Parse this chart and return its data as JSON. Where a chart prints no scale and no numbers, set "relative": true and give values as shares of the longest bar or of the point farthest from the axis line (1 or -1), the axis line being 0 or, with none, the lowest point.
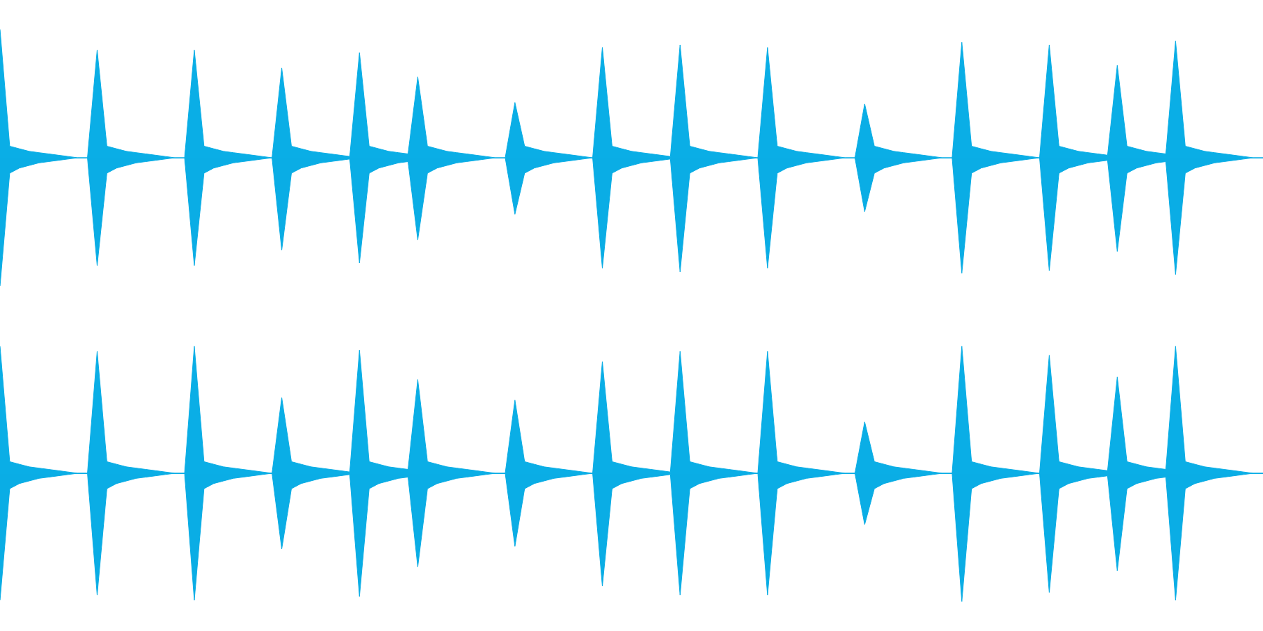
{
  "chart_data": [
    {
      "type": "area",
      "relative": true,
      "ref_lines": [
        {
          "axis": "y",
          "value": 0,
          "color": "#0aaee6"
        }
      ],
      "categories": [
        null,
        null,
        null,
        null,
        null,
        null,
        null,
        null,
        null,
        null,
        null,
        null,
        null,
        null,
        null,
        null,
        null,
        null,
        null,
        null,
        null,
        null,
        null,
        null,
        null,
        null,
        null,
        null,
        null,
        null,
        null,
        null,
        null,
        null,
        null,
        null,
        null,
        null,
        null,
        null,
        null,
        null,
        null,
        null,
        null,
        null,
        null,
        null,
        null,
        null,
        null,
        null,
        null,
        null,
        null,
        null,
        null,
        null,
        null,
        null,
        null,
        null,
        null,
        null,
        null,
        null,
        null,
        null,
        null,
        null,
        null,
        null,
        null,
        null,
        null,
        null,
        null,
        null,
        null,
        null,
        null,
        null,
        null,
        null,
        null,
        null,
        null,
        null,
        null,
        null,
        null,
        null,
        null,
        null,
        null,
        null,
        null,
        null,
        null,
        null,
        null,
        null,
        null,
        null,
        null,
        null,
        null,
        null,
        null,
        null,
        null,
        null,
        null,
        null,
        null,
        null,
        null,
        null,
        null,
        null,
        null,
        null,
        null,
        null,
        null,
        null,
        null,
        null,
        null,
        null,
        null
      ],
      "series": [
        {
          "color": "#0aaee6",
          "values": [
            1,
            0.09,
            0.07,
            0.05,
            0.04,
            0.03,
            0.02,
            0.01,
            0,
            0,
            0.84,
            0.09,
            0.07,
            0.05,
            0.04,
            0.03,
            0.02,
            0.01,
            0,
            0,
            0.84,
            0.09,
            0.07,
            0.05,
            0.04,
            0.03,
            0.02,
            0.01,
            0,
            0.7,
            0.09,
            0.07,
            0.05,
            0.04,
            0.03,
            0.02,
            0.01,
            0.82,
            0.09,
            0.07,
            0.05,
            0.04,
            0.03,
            0.63,
            0.09,
            0.07,
            0.05,
            0.04,
            0.03,
            0.02,
            0.01,
            0,
            0,
            0.43,
            0.09,
            0.07,
            0.05,
            0.04,
            0.03,
            0.02,
            0.01,
            0,
            0.86,
            0.09,
            0.07,
            0.05,
            0.04,
            0.03,
            0.02,
            0.01,
            0.88,
            0.09,
            0.07,
            0.05,
            0.04,
            0.03,
            0.02,
            0.01,
            0,
            0.86,
            0.09,
            0.07,
            0.05,
            0.04,
            0.03,
            0.02,
            0.01,
            0,
            0,
            0.42,
            0.09,
            0.07,
            0.05,
            0.04,
            0.03,
            0.02,
            0.01,
            0,
            0,
            0.9,
            0.09,
            0.07,
            0.05,
            0.04,
            0.03,
            0.02,
            0.01,
            0,
            0.88,
            0.09,
            0.07,
            0.05,
            0.04,
            0.03,
            0.02,
            0.72,
            0.09,
            0.07,
            0.05,
            0.04,
            0.03,
            0.91,
            0.09,
            0.07,
            0.05,
            0.04,
            0.03,
            0.02,
            0.01,
            0,
            0
          ]
        },
        {
          "color": "#0aade5",
          "values": [
            -1,
            -0.12,
            -0.08,
            -0.06,
            -0.04,
            -0.03,
            -0.02,
            -0.01,
            0,
            0,
            -0.84,
            -0.12,
            -0.08,
            -0.06,
            -0.04,
            -0.03,
            -0.02,
            -0.01,
            0,
            0,
            -0.84,
            -0.12,
            -0.08,
            -0.06,
            -0.04,
            -0.03,
            -0.02,
            -0.01,
            0,
            -0.72,
            -0.12,
            -0.08,
            -0.06,
            -0.04,
            -0.03,
            -0.02,
            -0.01,
            -0.82,
            -0.12,
            -0.08,
            -0.06,
            -0.04,
            -0.03,
            -0.64,
            -0.12,
            -0.08,
            -0.06,
            -0.04,
            -0.03,
            -0.02,
            -0.01,
            0,
            0,
            -0.44,
            -0.12,
            -0.08,
            -0.06,
            -0.04,
            -0.03,
            -0.02,
            -0.01,
            0,
            -0.86,
            -0.12,
            -0.08,
            -0.06,
            -0.04,
            -0.03,
            -0.02,
            -0.01,
            -0.89,
            -0.12,
            -0.08,
            -0.06,
            -0.04,
            -0.03,
            -0.02,
            -0.01,
            0,
            -0.86,
            -0.12,
            -0.08,
            -0.06,
            -0.04,
            -0.03,
            -0.02,
            -0.01,
            0,
            0,
            -0.42,
            -0.12,
            -0.08,
            -0.06,
            -0.04,
            -0.03,
            -0.02,
            -0.01,
            0,
            0,
            -0.9,
            -0.12,
            -0.08,
            -0.06,
            -0.04,
            -0.03,
            -0.02,
            -0.01,
            0,
            -0.88,
            -0.12,
            -0.08,
            -0.06,
            -0.04,
            -0.03,
            -0.02,
            -0.73,
            -0.12,
            -0.08,
            -0.06,
            -0.04,
            -0.03,
            -0.91,
            -0.12,
            -0.08,
            -0.06,
            -0.04,
            -0.03,
            -0.02,
            -0.01,
            0,
            0
          ]
        }
      ]
    },
    {
      "type": "area",
      "relative": true,
      "ref_lines": [
        {
          "axis": "y",
          "value": 0,
          "color": "#0aaee6"
        }
      ],
      "categories": [
        null,
        null,
        null,
        null,
        null,
        null,
        null,
        null,
        null,
        null,
        null,
        null,
        null,
        null,
        null,
        null,
        null,
        null,
        null,
        null,
        null,
        null,
        null,
        null,
        null,
        null,
        null,
        null,
        null,
        null,
        null,
        null,
        null,
        null,
        null,
        null,
        null,
        null,
        null,
        null,
        null,
        null,
        null,
        null,
        null,
        null,
        null,
        null,
        null,
        null,
        null,
        null,
        null,
        null,
        null,
        null,
        null,
        null,
        null,
        null,
        null,
        null,
        null,
        null,
        null,
        null,
        null,
        null,
        null,
        null,
        null,
        null,
        null,
        null,
        null,
        null,
        null,
        null,
        null,
        null,
        null,
        null,
        null,
        null,
        null,
        null,
        null,
        null,
        null,
        null,
        null,
        null,
        null,
        null,
        null,
        null,
        null,
        null,
        null,
        null,
        null,
        null,
        null,
        null,
        null,
        null,
        null,
        null,
        null,
        null,
        null,
        null,
        null,
        null,
        null,
        null,
        null,
        null,
        null,
        null,
        null,
        null,
        null,
        null,
        null,
        null,
        null,
        null,
        null,
        null,
        null
      ],
      "series": [
        {
          "color": "#0aaee6",
          "values": [
            0.99,
            0.09,
            0.07,
            0.05,
            0.04,
            0.03,
            0.02,
            0.01,
            0,
            0,
            0.95,
            0.09,
            0.07,
            0.05,
            0.04,
            0.03,
            0.02,
            0.01,
            0,
            0,
            0.99,
            0.09,
            0.07,
            0.05,
            0.04,
            0.03,
            0.02,
            0.01,
            0,
            0.59,
            0.09,
            0.07,
            0.05,
            0.04,
            0.03,
            0.02,
            0.01,
            0.96,
            0.09,
            0.07,
            0.05,
            0.04,
            0.03,
            0.73,
            0.09,
            0.07,
            0.05,
            0.04,
            0.03,
            0.02,
            0.01,
            0,
            0,
            0.57,
            0.09,
            0.07,
            0.05,
            0.04,
            0.03,
            0.02,
            0.01,
            0,
            0.87,
            0.09,
            0.07,
            0.05,
            0.04,
            0.03,
            0.02,
            0.01,
            0.95,
            0.09,
            0.07,
            0.05,
            0.04,
            0.03,
            0.02,
            0.01,
            0,
            0.95,
            0.09,
            0.07,
            0.05,
            0.04,
            0.03,
            0.02,
            0.01,
            0,
            0,
            0.4,
            0.09,
            0.07,
            0.05,
            0.04,
            0.03,
            0.02,
            0.01,
            0,
            0,
            0.99,
            0.09,
            0.07,
            0.05,
            0.04,
            0.03,
            0.02,
            0.01,
            0,
            0.92,
            0.09,
            0.07,
            0.05,
            0.04,
            0.03,
            0.02,
            0.75,
            0.09,
            0.07,
            0.05,
            0.04,
            0.03,
            0.99,
            0.09,
            0.07,
            0.05,
            0.04,
            0.03,
            0.02,
            0.01,
            0,
            0
          ]
        },
        {
          "color": "#0aade5",
          "values": [
            -0.99,
            -0.12,
            -0.08,
            -0.06,
            -0.04,
            -0.03,
            -0.02,
            -0.01,
            0,
            0,
            -0.95,
            -0.12,
            -0.08,
            -0.06,
            -0.04,
            -0.03,
            -0.02,
            -0.01,
            0,
            0,
            -0.99,
            -0.12,
            -0.08,
            -0.06,
            -0.04,
            -0.03,
            -0.02,
            -0.01,
            0,
            -0.59,
            -0.12,
            -0.08,
            -0.06,
            -0.04,
            -0.03,
            -0.02,
            -0.01,
            -0.96,
            -0.12,
            -0.08,
            -0.06,
            -0.04,
            -0.03,
            -0.73,
            -0.12,
            -0.08,
            -0.06,
            -0.04,
            -0.03,
            -0.02,
            -0.01,
            0,
            0,
            -0.57,
            -0.12,
            -0.08,
            -0.06,
            -0.04,
            -0.03,
            -0.02,
            -0.01,
            0,
            -0.88,
            -0.12,
            -0.08,
            -0.06,
            -0.04,
            -0.03,
            -0.02,
            -0.01,
            -0.95,
            -0.12,
            -0.08,
            -0.06,
            -0.04,
            -0.03,
            -0.02,
            -0.01,
            0,
            -0.95,
            -0.12,
            -0.08,
            -0.06,
            -0.04,
            -0.03,
            -0.02,
            -0.01,
            0,
            0,
            -0.4,
            -0.12,
            -0.08,
            -0.06,
            -0.04,
            -0.03,
            -0.02,
            -0.01,
            0,
            0,
            -1,
            -0.12,
            -0.08,
            -0.06,
            -0.04,
            -0.03,
            -0.02,
            -0.01,
            0,
            -0.93,
            -0.12,
            -0.08,
            -0.06,
            -0.04,
            -0.03,
            -0.02,
            -0.76,
            -0.12,
            -0.08,
            -0.06,
            -0.04,
            -0.03,
            -0.99,
            -0.12,
            -0.08,
            -0.06,
            -0.04,
            -0.03,
            -0.02,
            -0.01,
            0,
            0
          ]
        }
      ]
    }
  ]
}
